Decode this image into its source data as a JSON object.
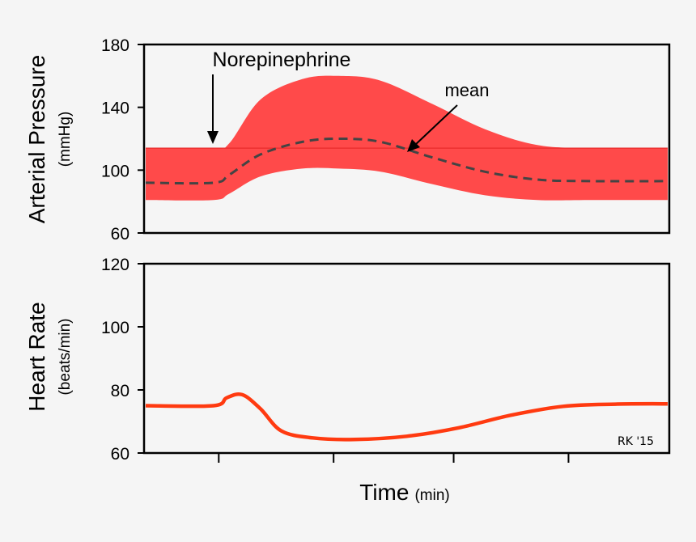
{
  "chart_data": [
    {
      "type": "area",
      "ylabel": "Arterial Pressure",
      "ylabel_unit": "(mmHg)",
      "ylim": [
        60,
        180
      ],
      "yticks": [
        60,
        100,
        140,
        180
      ],
      "xlim": [
        0,
        10
      ],
      "grid": false,
      "series": [
        {
          "name": "mean",
          "style": "dashed",
          "x": [
            0,
            1.3,
            1.6,
            2.2,
            3.0,
            3.7,
            4.5,
            5.5,
            6.5,
            7.5,
            8.5,
            10
          ],
          "values": [
            92,
            92,
            97,
            110,
            118,
            120,
            118,
            108,
            99,
            94,
            93,
            93
          ]
        },
        {
          "style": "band",
          "x": [
            0,
            1.3,
            1.6,
            2.2,
            3.0,
            3.7,
            4.5,
            5.5,
            6.5,
            7.5,
            8.5,
            10
          ],
          "upper": [
            114,
            114,
            117,
            145,
            158,
            160,
            157,
            142,
            126,
            116,
            114,
            114
          ],
          "lower": [
            81,
            81,
            85,
            96,
            101,
            101,
            99,
            91,
            84,
            81,
            81,
            81
          ]
        }
      ],
      "annotations": [
        {
          "text": "Norepinephrine",
          "x": 1.3,
          "y": 114,
          "arrow": true
        },
        {
          "text": "mean",
          "x": 5.2,
          "y": 111,
          "arrow": true
        }
      ]
    },
    {
      "type": "line",
      "ylabel": "Heart Rate",
      "ylabel_unit": "(beats/min)",
      "xlabel": "Time",
      "xlabel_unit": "(min)",
      "ylim": [
        60,
        120
      ],
      "yticks": [
        60,
        80,
        100,
        120
      ],
      "xlim": [
        0,
        10
      ],
      "xticks": [
        1.4,
        3.6,
        5.9,
        8.1
      ],
      "grid": false,
      "series": [
        {
          "x": [
            0,
            1.3,
            1.55,
            1.85,
            2.2,
            2.6,
            3.2,
            4.0,
            5.0,
            6.0,
            7.0,
            8.0,
            9.0,
            10
          ],
          "values": [
            75,
            75,
            77.5,
            78.5,
            74,
            67,
            64.8,
            64.3,
            65.3,
            68,
            72,
            74.8,
            75.5,
            75.6
          ]
        }
      ],
      "annotations": [
        {
          "text": "RK '15"
        }
      ]
    }
  ],
  "colors": {
    "band": "#ff4a4a",
    "mean_line": "#444444",
    "heart_rate_line": "#ff3a10",
    "axis": "#000000"
  }
}
